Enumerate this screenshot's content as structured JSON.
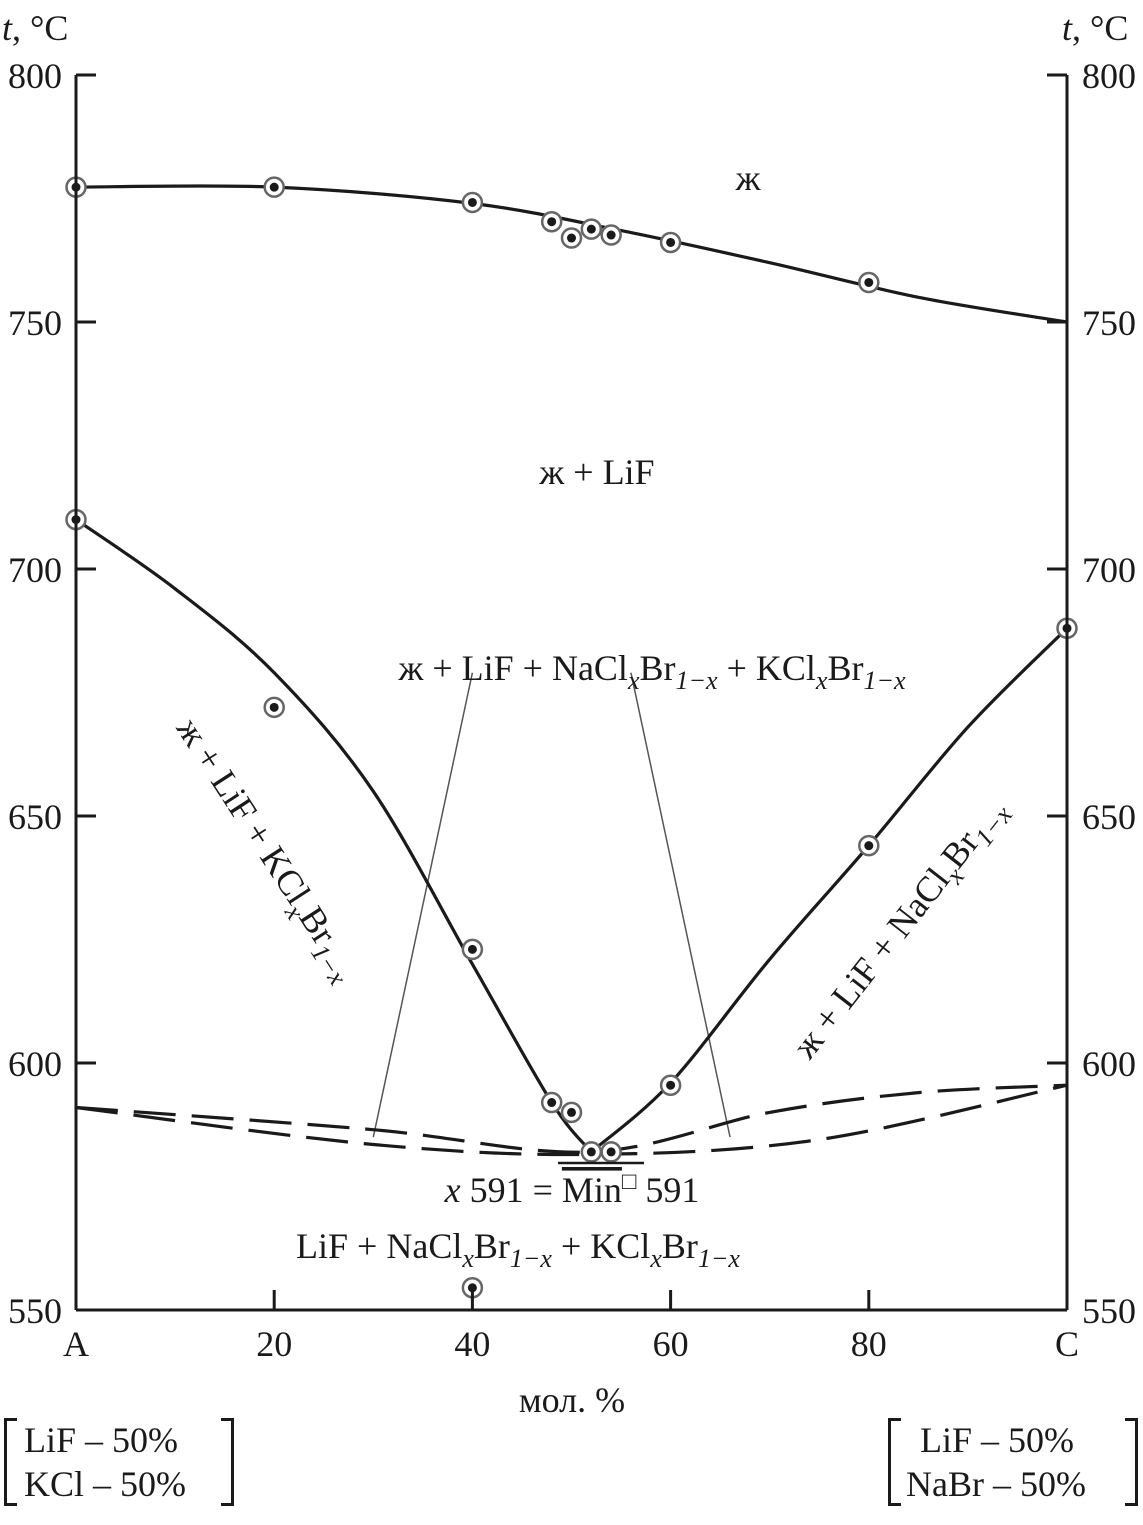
{
  "chart_data": {
    "type": "line",
    "x_axis": {
      "range": [
        0,
        100
      ],
      "ticks": [
        {
          "value": 0,
          "label": "A"
        },
        {
          "value": 20,
          "label": "20"
        },
        {
          "value": 40,
          "label": "40"
        },
        {
          "value": 60,
          "label": "60"
        },
        {
          "value": 80,
          "label": "80"
        },
        {
          "value": 100,
          "label": "C"
        }
      ],
      "label": "мол. %"
    },
    "y_axis": {
      "range": [
        550,
        800
      ],
      "ticks": [
        550,
        600,
        650,
        700,
        750,
        800
      ],
      "label_left": "t, °C",
      "label_right": "t, °C"
    },
    "grid": false,
    "series": [
      {
        "style": "solid",
        "curve": [
          [
            0,
            777.3
          ],
          [
            20,
            777.3
          ],
          [
            40,
            774
          ],
          [
            55,
            768.5
          ],
          [
            70,
            762
          ],
          [
            85,
            755
          ],
          [
            100,
            750
          ]
        ],
        "points": [
          [
            0,
            777.3
          ],
          [
            20,
            777.3
          ],
          [
            40,
            774.2
          ],
          [
            48,
            770.3
          ],
          [
            50,
            767
          ],
          [
            52,
            768.8
          ],
          [
            54,
            767.6
          ],
          [
            60,
            766.1
          ],
          [
            80,
            758
          ]
        ]
      },
      {
        "style": "solid",
        "curve": [
          [
            0,
            710
          ],
          [
            10,
            696
          ],
          [
            20,
            679
          ],
          [
            30,
            655
          ],
          [
            40,
            620
          ],
          [
            48,
            592
          ],
          [
            52,
            582
          ]
        ],
        "points": [
          [
            0,
            710
          ],
          [
            20,
            672
          ],
          [
            40,
            623
          ],
          [
            48,
            592
          ],
          [
            50,
            590
          ]
        ]
      },
      {
        "style": "solid",
        "curve": [
          [
            52,
            582
          ],
          [
            60,
            596
          ],
          [
            70,
            621
          ],
          [
            80,
            644
          ],
          [
            90,
            668
          ],
          [
            100,
            688
          ]
        ],
        "points": [
          [
            52,
            582
          ],
          [
            54,
            582
          ],
          [
            60,
            595.5
          ],
          [
            80,
            644
          ],
          [
            100,
            688
          ]
        ]
      },
      {
        "style": "dashed",
        "curve": [
          [
            0,
            591
          ],
          [
            30,
            586.5
          ],
          [
            52,
            582
          ],
          [
            70,
            590
          ],
          [
            85,
            594
          ],
          [
            100,
            595.5
          ]
        ],
        "points": []
      },
      {
        "style": "dashed",
        "curve": [
          [
            0,
            591
          ],
          [
            30,
            583.5
          ],
          [
            52,
            581.5
          ],
          [
            75,
            584.5
          ],
          [
            100,
            595.5
          ]
        ],
        "points": []
      }
    ],
    "isolated_points": [
      [
        40,
        554.5
      ]
    ],
    "leader_lines": [
      [
        [
          40,
          679
        ],
        [
          30,
          585
        ]
      ],
      [
        [
          56,
          679
        ],
        [
          66,
          585
        ]
      ]
    ],
    "annotations": {
      "liquid": "ж",
      "liquid_lif": "ж + LiF",
      "ternary_a": "ж + LiF + NaCl",
      "ternary_b": "Br",
      "ternary_c": " + KCl",
      "ternary_d": "Br",
      "left_a": "ж + LiF + KCl",
      "left_b": "Br",
      "right_a": "ж + LiF + NaCl",
      "right_b": "Br",
      "min_a": "x",
      "min_b": " 591 = ",
      "min_c": "Min",
      "min_d": "□",
      "min_e": " 591",
      "solid_a": "LiF + NaCl",
      "solid_b": "Br",
      "solid_c": " + KCl",
      "solid_d": "Br",
      "sub_x": "x",
      "sub_1mx": "1−x",
      "t_symbol": "t",
      "t_unit": ", °C"
    }
  },
  "components": {
    "left": {
      "line1": "LiF – 50%",
      "line2": "KCl – 50%"
    },
    "right": {
      "line1": "LiF – 50%",
      "line2": "NaBr – 50%"
    }
  }
}
